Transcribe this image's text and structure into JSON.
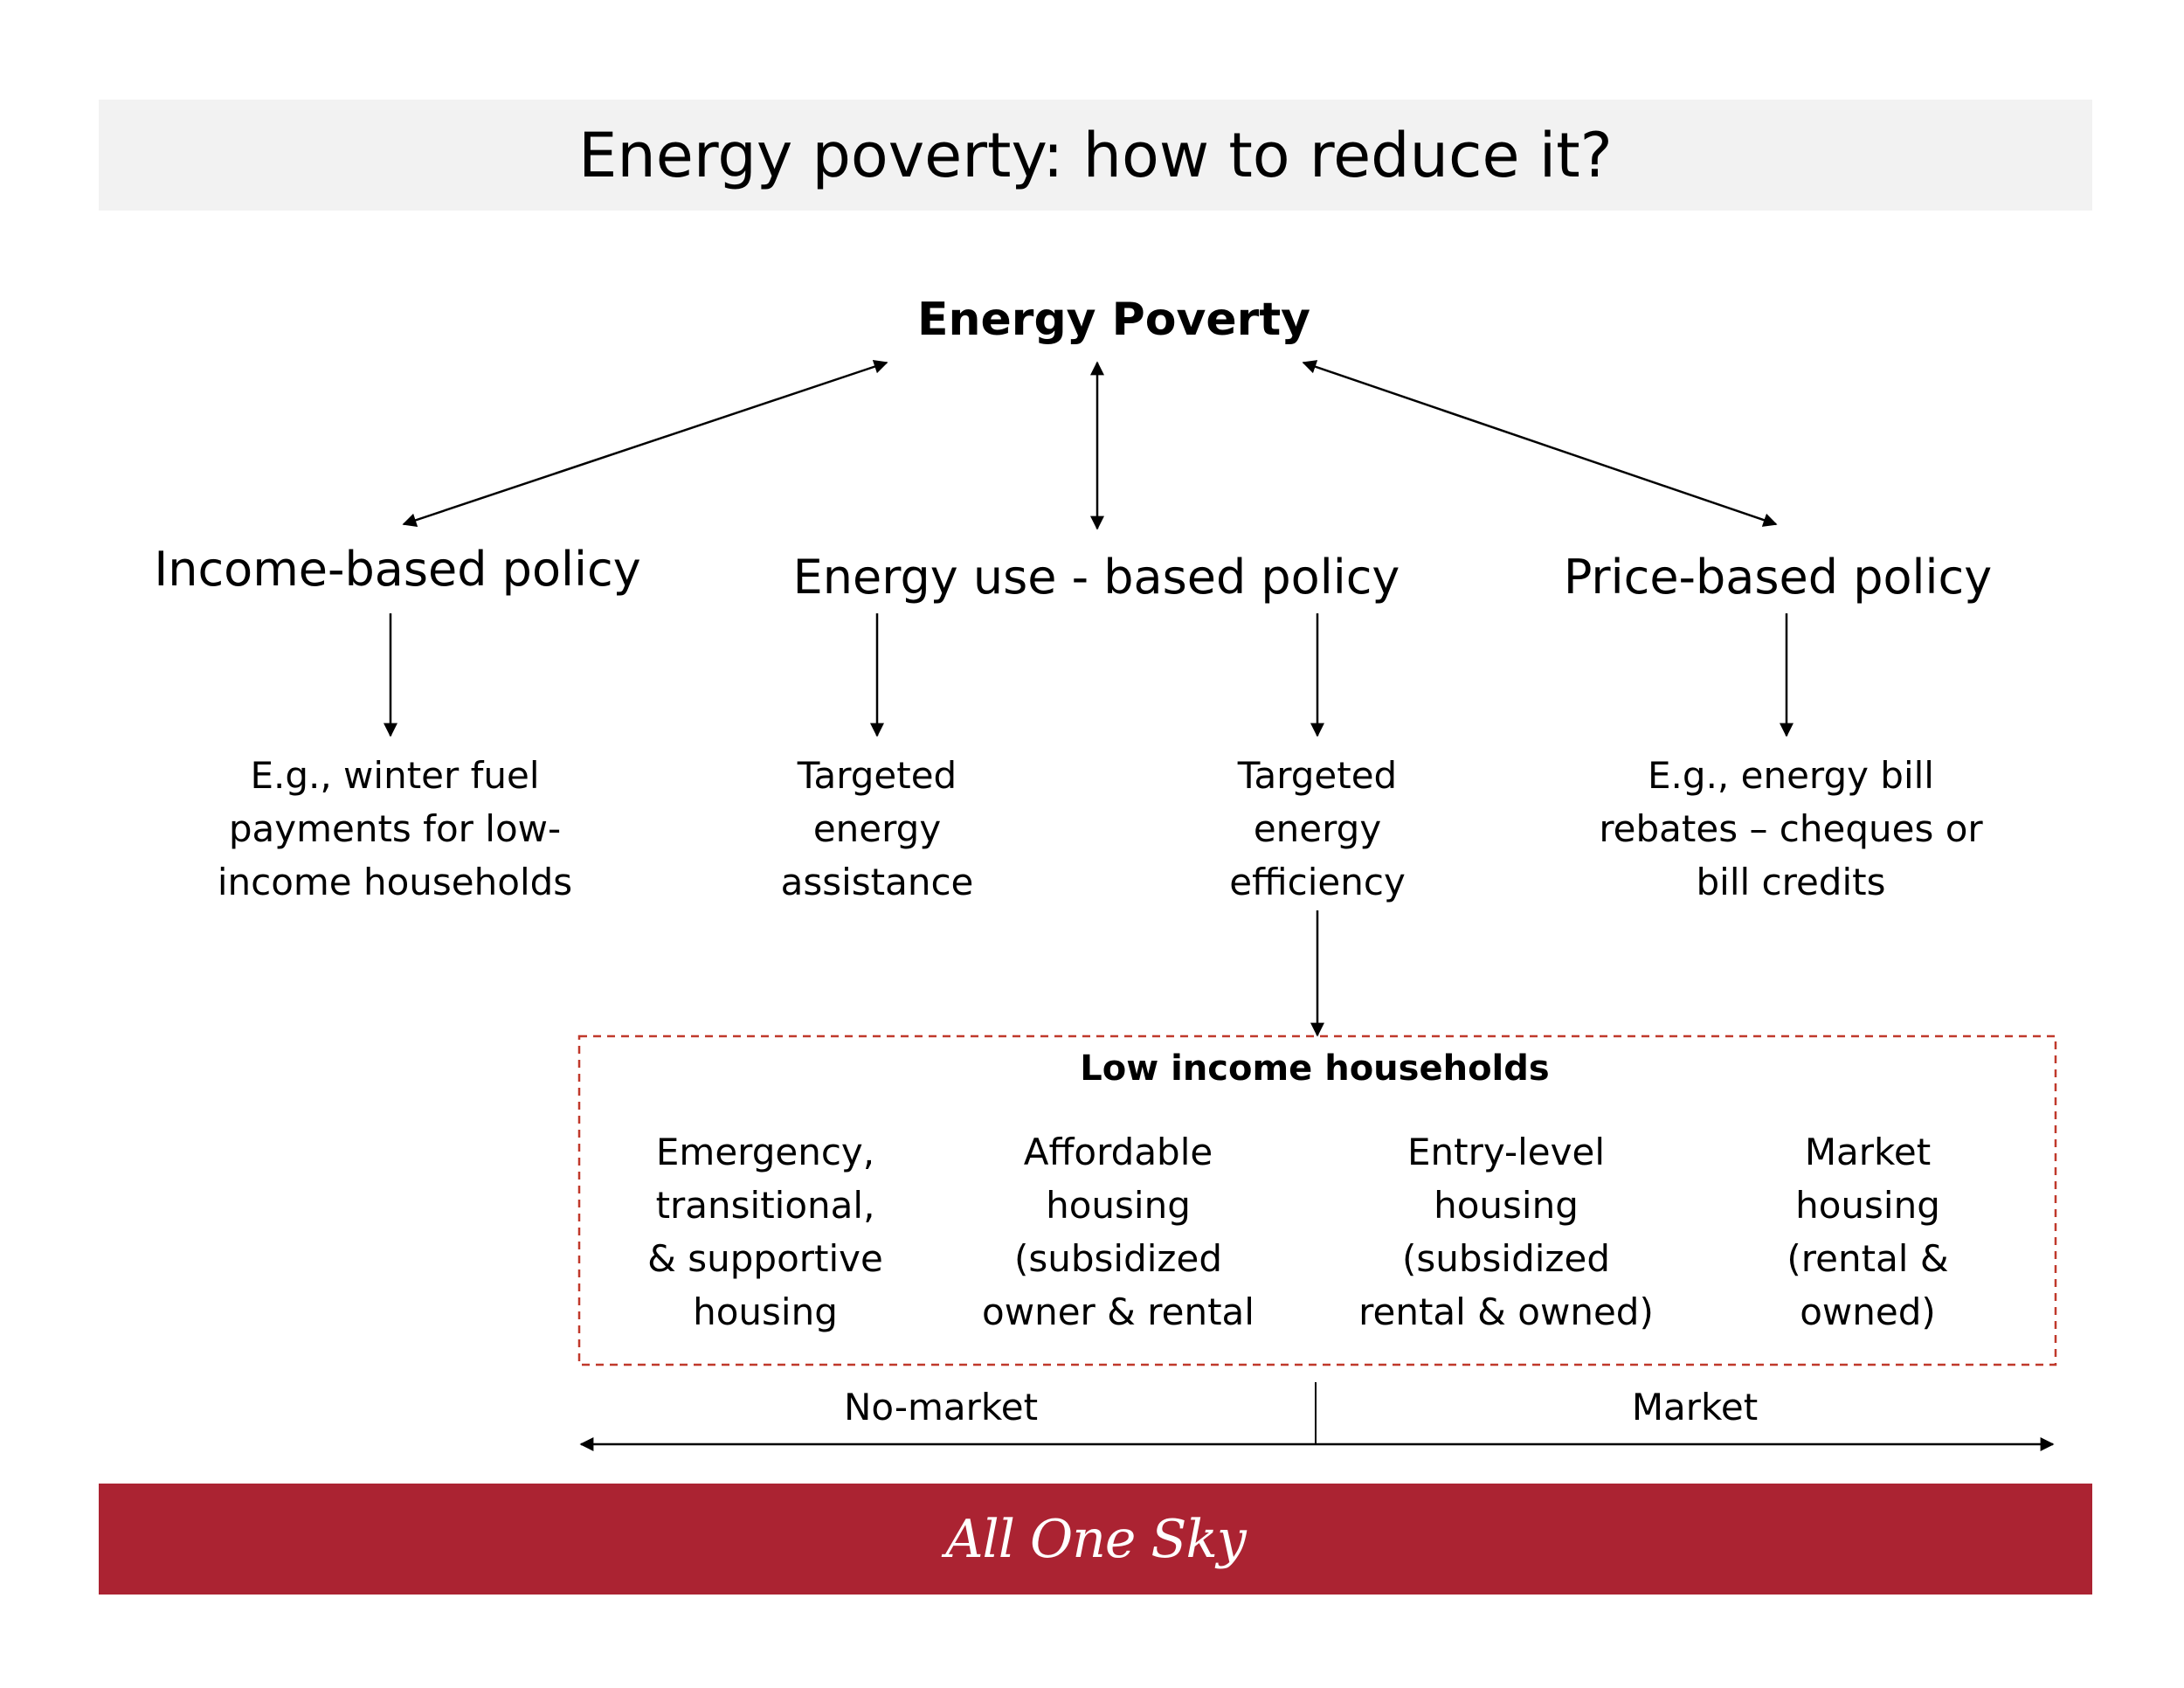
{
  "title": "Energy poverty: how to reduce it?",
  "root": {
    "label": "Energy Poverty"
  },
  "policies": [
    {
      "label": "Income-based policy"
    },
    {
      "label": "Energy use - based policy"
    },
    {
      "label": "Price-based policy"
    }
  ],
  "examples": [
    {
      "label": "E.g., winter fuel payments for low-income households"
    },
    {
      "label": "Targeted energy assistance"
    },
    {
      "label": "Targeted energy efficiency"
    },
    {
      "label": "E.g., energy bill rebates – cheques or bill credits"
    }
  ],
  "housing_group": {
    "title": "Low income households",
    "categories": [
      {
        "label": "Emergency, transitional, & supportive housing"
      },
      {
        "label": "Affordable housing (subsidized owner & rental"
      },
      {
        "label": "Entry-level housing (subsidized rental & owned)"
      },
      {
        "label": "Market housing (rental & owned)"
      }
    ]
  },
  "spectrum": {
    "left_label": "No-market",
    "right_label": "Market"
  },
  "footer": {
    "logo_text": "All One Sky"
  },
  "colors": {
    "footer_bar": "#ab2332",
    "title_bar": "#f2f2f2",
    "dashed_border": "#c0392b"
  }
}
